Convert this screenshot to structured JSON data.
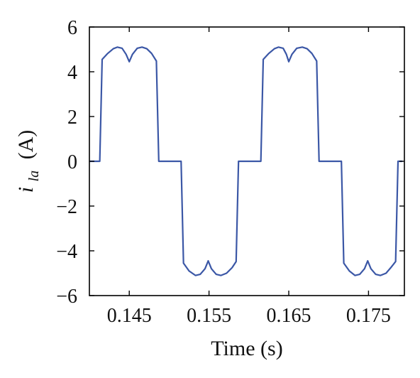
{
  "chart_data": {
    "type": "line",
    "title": "",
    "xlabel": "Time (s)",
    "ylabel": {
      "symbol": "i",
      "subscript": "la",
      "unit": "(A)"
    },
    "xlim": [
      0.14,
      0.1795
    ],
    "ylim": [
      -6,
      6
    ],
    "xticks": [
      0.145,
      0.155,
      0.165,
      0.175
    ],
    "xtick_labels": [
      "0.145",
      "0.155",
      "0.165",
      "0.175"
    ],
    "yticks": [
      -6,
      -4,
      -2,
      0,
      2,
      4,
      6
    ],
    "ytick_labels": [
      "−6",
      "−4",
      "−2",
      "0",
      "2",
      "4",
      "6"
    ],
    "grid": false,
    "legend": "none",
    "series": [
      {
        "color": "#3b57a6",
        "points": [
          [
            0.14,
            0.0
          ],
          [
            0.1413,
            0.0
          ],
          [
            0.1416,
            4.55
          ],
          [
            0.1423,
            4.82
          ],
          [
            0.143,
            5.03
          ],
          [
            0.1435,
            5.1
          ],
          [
            0.1441,
            5.05
          ],
          [
            0.1446,
            4.78
          ],
          [
            0.145,
            4.45
          ],
          [
            0.1454,
            4.78
          ],
          [
            0.146,
            5.05
          ],
          [
            0.1466,
            5.1
          ],
          [
            0.1472,
            5.03
          ],
          [
            0.1478,
            4.82
          ],
          [
            0.1484,
            4.48
          ],
          [
            0.1487,
            0.0
          ],
          [
            0.1515,
            0.0
          ],
          [
            0.1518,
            -4.55
          ],
          [
            0.1525,
            -4.9
          ],
          [
            0.1533,
            -5.1
          ],
          [
            0.1539,
            -5.05
          ],
          [
            0.1545,
            -4.8
          ],
          [
            0.1549,
            -4.45
          ],
          [
            0.1553,
            -4.8
          ],
          [
            0.1559,
            -5.05
          ],
          [
            0.1565,
            -5.1
          ],
          [
            0.1572,
            -5.0
          ],
          [
            0.1579,
            -4.75
          ],
          [
            0.1584,
            -4.48
          ],
          [
            0.1587,
            0.0
          ],
          [
            0.1615,
            0.0
          ],
          [
            0.1618,
            4.55
          ],
          [
            0.1625,
            4.82
          ],
          [
            0.1632,
            5.03
          ],
          [
            0.1637,
            5.1
          ],
          [
            0.1643,
            5.05
          ],
          [
            0.1647,
            4.78
          ],
          [
            0.165,
            4.45
          ],
          [
            0.1654,
            4.78
          ],
          [
            0.166,
            5.05
          ],
          [
            0.1667,
            5.1
          ],
          [
            0.1673,
            5.03
          ],
          [
            0.1679,
            4.82
          ],
          [
            0.1685,
            4.48
          ],
          [
            0.1688,
            0.0
          ],
          [
            0.1716,
            0.0
          ],
          [
            0.1719,
            -4.55
          ],
          [
            0.1726,
            -4.9
          ],
          [
            0.1733,
            -5.1
          ],
          [
            0.1739,
            -5.05
          ],
          [
            0.1745,
            -4.8
          ],
          [
            0.1749,
            -4.45
          ],
          [
            0.1753,
            -4.8
          ],
          [
            0.1759,
            -5.05
          ],
          [
            0.1765,
            -5.1
          ],
          [
            0.1772,
            -5.0
          ],
          [
            0.1778,
            -4.75
          ],
          [
            0.1784,
            -4.48
          ],
          [
            0.1787,
            0.0
          ],
          [
            0.1792,
            0.0
          ]
        ]
      }
    ]
  }
}
